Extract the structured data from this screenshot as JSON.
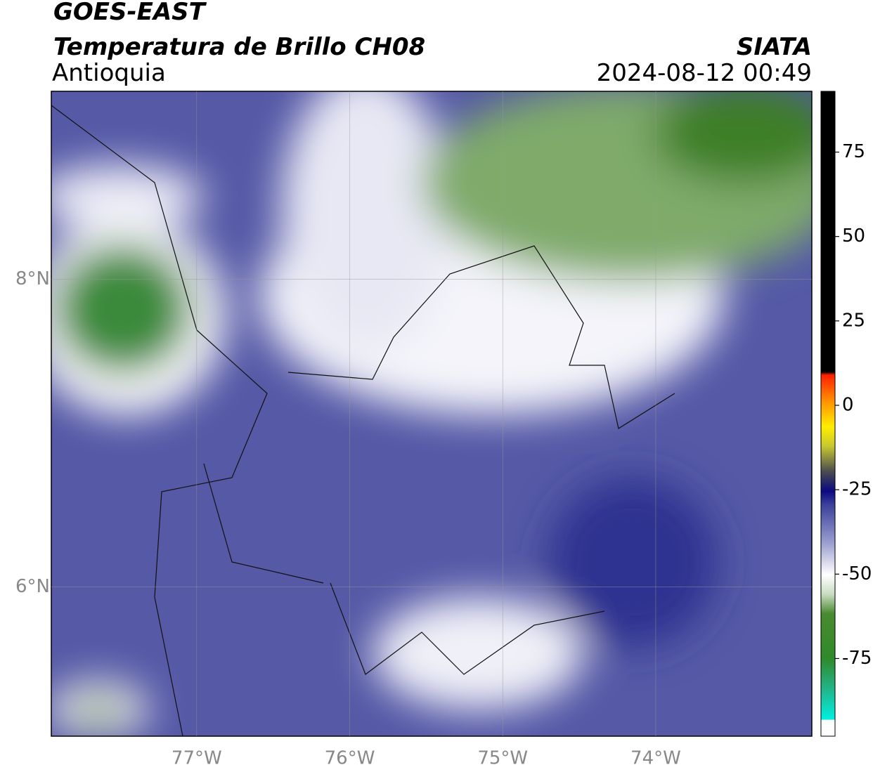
{
  "header": {
    "title": "GOES-EAST",
    "subtitle": "Temperatura de Brillo CH08",
    "region": "Antioquia",
    "source": "SIATA",
    "datetime": "2024-08-12 00:49"
  },
  "map": {
    "xlim": [
      -77.95,
      -72.98
    ],
    "ylim": [
      5.03,
      9.22
    ],
    "lon_ticks": [
      {
        "value": -77,
        "label": "77°W"
      },
      {
        "value": -76,
        "label": "76°W"
      },
      {
        "value": -75,
        "label": "75°W"
      },
      {
        "value": -74,
        "label": "74°W"
      }
    ],
    "lat_ticks": [
      {
        "value": 8,
        "label": "8°N"
      },
      {
        "value": 6,
        "label": "6°N"
      }
    ]
  },
  "colorbar": {
    "lim": [
      -98,
      93
    ],
    "ticks": [
      75,
      50,
      25,
      0,
      -25,
      -50,
      -75
    ]
  }
}
